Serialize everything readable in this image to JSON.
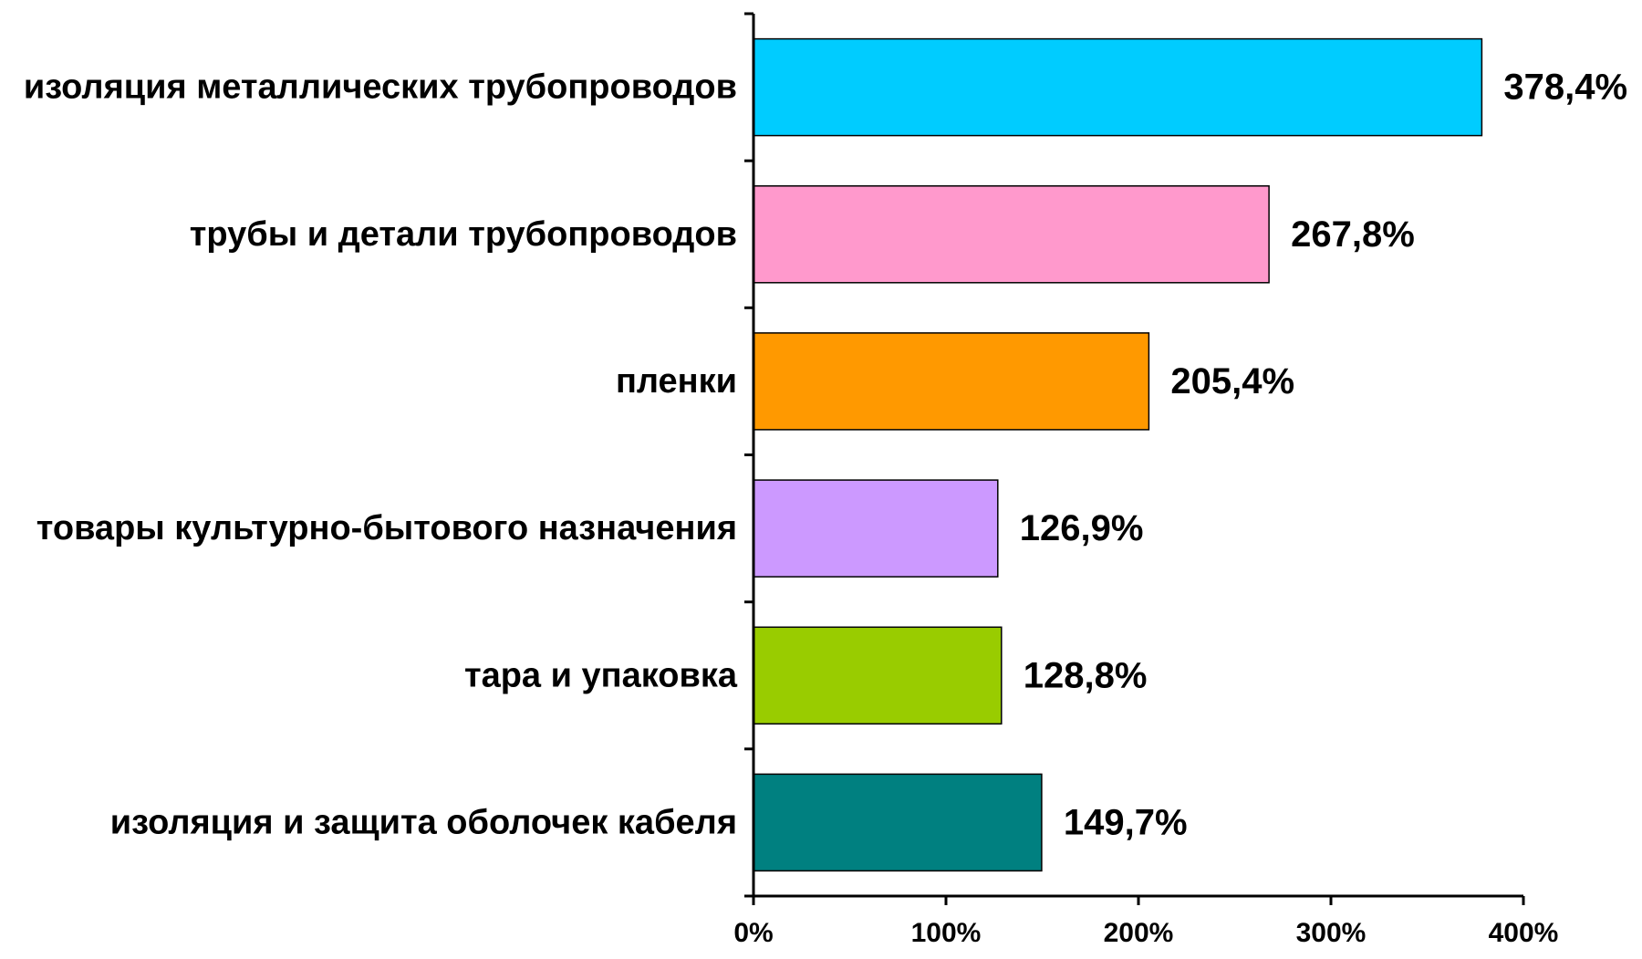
{
  "chart_data": {
    "type": "bar",
    "orientation": "horizontal",
    "categories": [
      "изоляция металлических трубопроводов",
      "трубы и детали трубопроводов",
      "пленки",
      "товары культурно-бытового назначения",
      "тара и упаковка",
      "изоляция и защита оболочек кабеля"
    ],
    "values": [
      378.4,
      267.8,
      205.4,
      126.9,
      128.8,
      149.7
    ],
    "value_labels": [
      "378,4%",
      "267,8%",
      "205,4%",
      "126,9%",
      "128,8%",
      "149,7%"
    ],
    "bar_colors": [
      "#00CCFF",
      "#FF99CC",
      "#FF9900",
      "#CC99FF",
      "#99CC00",
      "#008080"
    ],
    "xlim": [
      0,
      400
    ],
    "x_ticks": [
      0,
      100,
      200,
      300,
      400
    ],
    "x_tick_labels": [
      "0%",
      "100%",
      "200%",
      "300%",
      "400%"
    ],
    "title": "",
    "xlabel": "",
    "ylabel": "",
    "grid": false,
    "legend": "none"
  }
}
